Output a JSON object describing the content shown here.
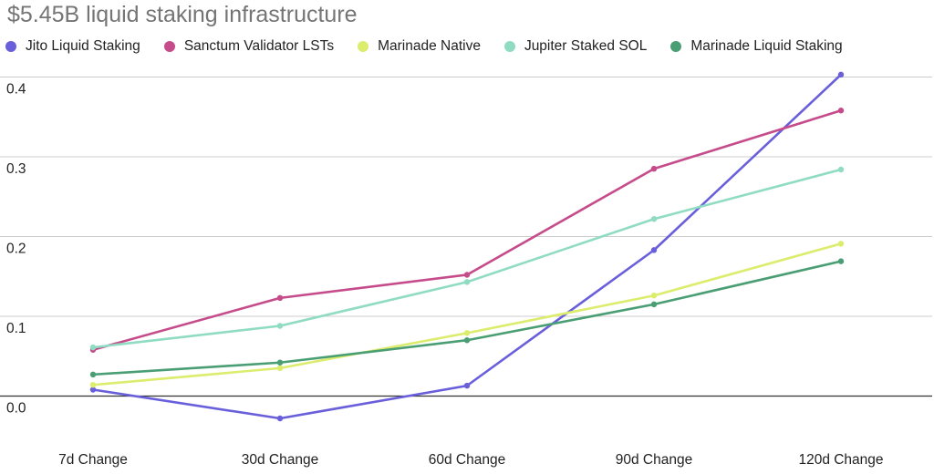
{
  "chart_data": {
    "type": "line",
    "title": "$5.45B liquid staking infrastructure",
    "xlabel": "",
    "ylabel": "",
    "categories": [
      "7d Change",
      "30d Change",
      "60d Change",
      "90d Change",
      "120d Change"
    ],
    "ylim": [
      -0.03,
      0.4
    ],
    "yticks": [
      0.0,
      0.1,
      0.2,
      0.3,
      0.4
    ],
    "ytick_labels": [
      "0.0",
      "0.1",
      "0.2",
      "0.3",
      "0.4"
    ],
    "grid": true,
    "legend_position": "top",
    "series": [
      {
        "name": "Jito Liquid Staking",
        "color": "#6a5fdb",
        "values": [
          0.008,
          -0.028,
          0.013,
          0.183,
          0.403
        ]
      },
      {
        "name": "Sanctum Validator LSTs",
        "color": "#c64b8a",
        "values": [
          0.058,
          0.123,
          0.152,
          0.285,
          0.358
        ]
      },
      {
        "name": "Marinade Native",
        "color": "#dcec6c",
        "values": [
          0.014,
          0.035,
          0.079,
          0.126,
          0.191
        ]
      },
      {
        "name": "Jupiter Staked SOL",
        "color": "#8fdcc3",
        "values": [
          0.061,
          0.088,
          0.143,
          0.222,
          0.284
        ]
      },
      {
        "name": "Marinade Liquid Staking",
        "color": "#4a9e74",
        "values": [
          0.027,
          0.042,
          0.07,
          0.115,
          0.169
        ]
      }
    ]
  }
}
